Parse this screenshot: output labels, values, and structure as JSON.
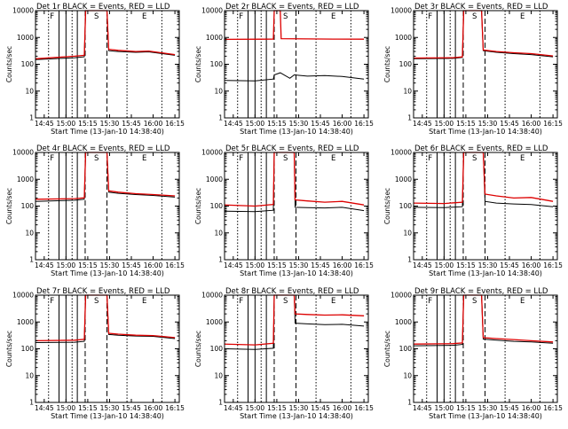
{
  "chart_data": [
    {
      "type": "line",
      "title": "Det 1r  BLACK = Events, RED = LLD",
      "xlabel": "Start Time (13-Jan-10 14:38:40)",
      "ylabel": "Counts/sec",
      "xticks": [
        "14:45",
        "15:00",
        "15:15",
        "15:30",
        "15:45",
        "16:00",
        "16:15"
      ],
      "yticks": [
        "1",
        "10",
        "100",
        "1000",
        "10000"
      ],
      "ylim": [
        1,
        10000
      ],
      "xlim": [
        14.65,
        16.3
      ],
      "markers": [
        "F",
        "S",
        "E"
      ],
      "series": [
        {
          "name": "Events",
          "color": "#000000",
          "values": [
            [
              14.65,
              150
            ],
            [
              15.1,
              175
            ],
            [
              15.21,
              190
            ],
            [
              15.225,
              10000
            ],
            [
              15.47,
              10000
            ],
            [
              15.49,
              320
            ],
            [
              15.6,
              300
            ],
            [
              15.8,
              280
            ],
            [
              15.95,
              290
            ],
            [
              16.25,
              215
            ]
          ]
        },
        {
          "name": "LLD",
          "color": "#dd0000",
          "values": [
            [
              14.65,
              160
            ],
            [
              15.1,
              200
            ],
            [
              15.21,
              215
            ],
            [
              15.225,
              10000
            ],
            [
              15.47,
              10000
            ],
            [
              15.49,
              360
            ],
            [
              15.6,
              330
            ],
            [
              15.8,
              300
            ],
            [
              15.95,
              310
            ],
            [
              16.25,
              230
            ]
          ]
        }
      ]
    },
    {
      "type": "line",
      "title": "Det 2r  BLACK = Events, RED = LLD",
      "xlabel": "Start Time (13-Jan-10 14:38:40)",
      "ylabel": "Counts/sec",
      "xticks": [
        "14:45",
        "15:00",
        "15:15",
        "15:30",
        "15:45",
        "16:00",
        "16:15"
      ],
      "yticks": [
        "1",
        "10",
        "100",
        "1000",
        "10000"
      ],
      "ylim": [
        1,
        10000
      ],
      "xlim": [
        14.65,
        16.3
      ],
      "markers": [
        "F",
        "S",
        "E"
      ],
      "series": [
        {
          "name": "Events",
          "color": "#000000",
          "values": [
            [
              14.65,
              25
            ],
            [
              15.0,
              24
            ],
            [
              15.21,
              28
            ],
            [
              15.22,
              40
            ],
            [
              15.29,
              48
            ],
            [
              15.4,
              30
            ],
            [
              15.45,
              40
            ],
            [
              15.6,
              36
            ],
            [
              15.8,
              38
            ],
            [
              16.0,
              35
            ],
            [
              16.25,
              28
            ]
          ]
        },
        {
          "name": "LLD",
          "color": "#dd0000",
          "values": [
            [
              14.65,
              850
            ],
            [
              15.1,
              860
            ],
            [
              15.21,
              870
            ],
            [
              15.22,
              10000
            ],
            [
              15.29,
              10000
            ],
            [
              15.3,
              900
            ],
            [
              15.6,
              880
            ],
            [
              15.9,
              870
            ],
            [
              16.25,
              860
            ]
          ]
        }
      ]
    },
    {
      "type": "line",
      "title": "Det 3r  BLACK = Events, RED = LLD",
      "xlabel": "Start Time (13-Jan-10 14:38:40)",
      "ylabel": "Counts/sec",
      "xticks": [
        "14:45",
        "15:00",
        "15:15",
        "15:30",
        "15:45",
        "16:00",
        "16:15"
      ],
      "yticks": [
        "1",
        "10",
        "100",
        "1000",
        "10000"
      ],
      "ylim": [
        1,
        10000
      ],
      "xlim": [
        14.65,
        16.3
      ],
      "markers": [
        "F",
        "S",
        "E"
      ],
      "series": [
        {
          "name": "Events",
          "color": "#000000",
          "values": [
            [
              14.65,
              160
            ],
            [
              15.1,
              165
            ],
            [
              15.21,
              180
            ],
            [
              15.225,
              10000
            ],
            [
              15.43,
              10000
            ],
            [
              15.45,
              320
            ],
            [
              15.6,
              280
            ],
            [
              15.8,
              250
            ],
            [
              16.0,
              230
            ],
            [
              16.25,
              190
            ]
          ]
        },
        {
          "name": "LLD",
          "color": "#dd0000",
          "values": [
            [
              14.65,
              170
            ],
            [
              15.1,
              175
            ],
            [
              15.21,
              190
            ],
            [
              15.225,
              10000
            ],
            [
              15.43,
              10000
            ],
            [
              15.45,
              340
            ],
            [
              15.6,
              300
            ],
            [
              15.8,
              270
            ],
            [
              16.0,
              250
            ],
            [
              16.25,
              205
            ]
          ]
        }
      ]
    },
    {
      "type": "line",
      "title": "Det 4r  BLACK = Events, RED = LLD",
      "xlabel": "Start Time (13-Jan-10 14:38:40)",
      "ylabel": "Counts/sec",
      "xticks": [
        "14:45",
        "15:00",
        "15:15",
        "15:30",
        "15:45",
        "16:00",
        "16:15"
      ],
      "yticks": [
        "1",
        "10",
        "100",
        "1000",
        "10000"
      ],
      "ylim": [
        1,
        10000
      ],
      "xlim": [
        14.65,
        16.3
      ],
      "markers": [
        "F",
        "S",
        "E"
      ],
      "series": [
        {
          "name": "Events",
          "color": "#000000",
          "values": [
            [
              14.65,
              150
            ],
            [
              15.1,
              165
            ],
            [
              15.21,
              180
            ],
            [
              15.225,
              10000
            ],
            [
              15.47,
              10000
            ],
            [
              15.49,
              330
            ],
            [
              15.6,
              300
            ],
            [
              15.8,
              270
            ],
            [
              16.0,
              250
            ],
            [
              16.25,
              215
            ]
          ]
        },
        {
          "name": "LLD",
          "color": "#dd0000",
          "values": [
            [
              14.65,
              180
            ],
            [
              15.1,
              190
            ],
            [
              15.21,
              205
            ],
            [
              15.225,
              10000
            ],
            [
              15.47,
              10000
            ],
            [
              15.49,
              370
            ],
            [
              15.6,
              330
            ],
            [
              15.8,
              290
            ],
            [
              16.0,
              270
            ],
            [
              16.25,
              240
            ]
          ]
        }
      ]
    },
    {
      "type": "line",
      "title": "Det 5r  BLACK = Events, RED = LLD",
      "xlabel": "Start Time (13-Jan-10 14:38:40)",
      "ylabel": "Counts/sec",
      "xticks": [
        "14:45",
        "15:00",
        "15:15",
        "15:30",
        "15:45",
        "16:00",
        "16:15"
      ],
      "yticks": [
        "1",
        "10",
        "100",
        "1000",
        "10000"
      ],
      "ylim": [
        1,
        10000
      ],
      "xlim": [
        14.65,
        16.3
      ],
      "markers": [
        "F",
        "S",
        "E"
      ],
      "series": [
        {
          "name": "Events",
          "color": "#000000",
          "values": [
            [
              14.65,
              65
            ],
            [
              15.0,
              62
            ],
            [
              15.21,
              70
            ],
            [
              15.22,
              10000
            ],
            [
              15.45,
              10000
            ],
            [
              15.46,
              90
            ],
            [
              15.6,
              88
            ],
            [
              15.8,
              85
            ],
            [
              16.0,
              90
            ],
            [
              16.25,
              68
            ]
          ]
        },
        {
          "name": "LLD",
          "color": "#dd0000",
          "values": [
            [
              14.65,
              110
            ],
            [
              15.0,
              100
            ],
            [
              15.21,
              115
            ],
            [
              15.22,
              10000
            ],
            [
              15.45,
              10000
            ],
            [
              15.46,
              170
            ],
            [
              15.6,
              155
            ],
            [
              15.8,
              140
            ],
            [
              16.0,
              150
            ],
            [
              16.25,
              110
            ]
          ]
        }
      ]
    },
    {
      "type": "line",
      "title": "Det 6r  BLACK = Events, RED = LLD",
      "xlabel": "Start Time (13-Jan-10 14:38:40)",
      "ylabel": "Counts/sec",
      "xticks": [
        "14:45",
        "15:00",
        "15:15",
        "15:30",
        "15:45",
        "16:00",
        "16:15"
      ],
      "yticks": [
        "1",
        "10",
        "100",
        "1000",
        "10000"
      ],
      "ylim": [
        1,
        10000
      ],
      "xlim": [
        14.65,
        16.3
      ],
      "markers": [
        "F",
        "S",
        "E"
      ],
      "series": [
        {
          "name": "Events",
          "color": "#000000",
          "values": [
            [
              14.65,
              90
            ],
            [
              15.0,
              88
            ],
            [
              15.21,
              95
            ],
            [
              15.225,
              10000
            ],
            [
              15.45,
              10000
            ],
            [
              15.47,
              150
            ],
            [
              15.6,
              130
            ],
            [
              15.8,
              120
            ],
            [
              16.0,
              115
            ],
            [
              16.25,
              95
            ]
          ]
        },
        {
          "name": "LLD",
          "color": "#dd0000",
          "values": [
            [
              14.65,
              130
            ],
            [
              15.0,
              125
            ],
            [
              15.21,
              140
            ],
            [
              15.225,
              10000
            ],
            [
              15.45,
              10000
            ],
            [
              15.47,
              280
            ],
            [
              15.6,
              240
            ],
            [
              15.8,
              200
            ],
            [
              16.0,
              210
            ],
            [
              16.25,
              150
            ]
          ]
        }
      ]
    },
    {
      "type": "line",
      "title": "Det 7r  BLACK = Events, RED = LLD",
      "xlabel": "Start Time (13-Jan-10 14:38:40)",
      "ylabel": "Counts/sec",
      "xticks": [
        "14:45",
        "15:00",
        "15:15",
        "15:30",
        "15:45",
        "16:00",
        "16:15"
      ],
      "yticks": [
        "1",
        "10",
        "100",
        "1000",
        "10000"
      ],
      "ylim": [
        1,
        10000
      ],
      "xlim": [
        14.65,
        16.3
      ],
      "markers": [
        "F",
        "S",
        "E"
      ],
      "series": [
        {
          "name": "Events",
          "color": "#000000",
          "values": [
            [
              14.65,
              170
            ],
            [
              15.1,
              175
            ],
            [
              15.21,
              190
            ],
            [
              15.225,
              10000
            ],
            [
              15.47,
              10000
            ],
            [
              15.49,
              340
            ],
            [
              15.6,
              320
            ],
            [
              15.8,
              300
            ],
            [
              16.0,
              290
            ],
            [
              16.25,
              240
            ]
          ]
        },
        {
          "name": "LLD",
          "color": "#dd0000",
          "values": [
            [
              14.65,
              200
            ],
            [
              15.1,
              210
            ],
            [
              15.21,
              225
            ],
            [
              15.225,
              10000
            ],
            [
              15.47,
              10000
            ],
            [
              15.49,
              380
            ],
            [
              15.6,
              350
            ],
            [
              15.8,
              320
            ],
            [
              16.0,
              310
            ],
            [
              16.25,
              260
            ]
          ]
        }
      ]
    },
    {
      "type": "line",
      "title": "Det 8r  BLACK = Events, RED = LLD",
      "xlabel": "Start Time (13-Jan-10 14:38:40)",
      "ylabel": "Counts/sec",
      "xticks": [
        "14:45",
        "15:00",
        "15:15",
        "15:30",
        "15:45",
        "16:00",
        "16:15"
      ],
      "yticks": [
        "1",
        "10",
        "100",
        "1000",
        "10000"
      ],
      "ylim": [
        1,
        10000
      ],
      "xlim": [
        14.65,
        16.3
      ],
      "markers": [
        "F",
        "S",
        "E"
      ],
      "series": [
        {
          "name": "Events",
          "color": "#000000",
          "values": [
            [
              14.65,
              100
            ],
            [
              15.0,
              95
            ],
            [
              15.21,
              105
            ],
            [
              15.22,
              10000
            ],
            [
              15.45,
              10000
            ],
            [
              15.46,
              900
            ],
            [
              15.6,
              850
            ],
            [
              15.8,
              800
            ],
            [
              16.0,
              820
            ],
            [
              16.25,
              700
            ]
          ]
        },
        {
          "name": "LLD",
          "color": "#dd0000",
          "values": [
            [
              14.65,
              150
            ],
            [
              15.0,
              140
            ],
            [
              15.21,
              160
            ],
            [
              15.22,
              10000
            ],
            [
              15.45,
              10000
            ],
            [
              15.46,
              2000
            ],
            [
              15.6,
              1900
            ],
            [
              15.8,
              1800
            ],
            [
              16.0,
              1850
            ],
            [
              16.25,
              1700
            ]
          ]
        }
      ]
    },
    {
      "type": "line",
      "title": "Det 9r  BLACK = Events, RED = LLD",
      "xlabel": "Start Time (13-Jan-10 14:38:40)",
      "ylabel": "Counts/sec",
      "xticks": [
        "14:45",
        "15:00",
        "15:15",
        "15:30",
        "15:45",
        "16:00",
        "16:15"
      ],
      "yticks": [
        "1",
        "10",
        "100",
        "1000",
        "10000"
      ],
      "ylim": [
        1,
        10000
      ],
      "xlim": [
        14.65,
        16.3
      ],
      "markers": [
        "F",
        "S",
        "E"
      ],
      "series": [
        {
          "name": "Events",
          "color": "#000000",
          "values": [
            [
              14.65,
              130
            ],
            [
              15.1,
              135
            ],
            [
              15.21,
              145
            ],
            [
              15.225,
              10000
            ],
            [
              15.43,
              10000
            ],
            [
              15.45,
              230
            ],
            [
              15.6,
              210
            ],
            [
              15.8,
              190
            ],
            [
              16.0,
              180
            ],
            [
              16.25,
              160
            ]
          ]
        },
        {
          "name": "LLD",
          "color": "#dd0000",
          "values": [
            [
              14.65,
              150
            ],
            [
              15.1,
              155
            ],
            [
              15.21,
              165
            ],
            [
              15.225,
              10000
            ],
            [
              15.43,
              10000
            ],
            [
              15.45,
              260
            ],
            [
              15.6,
              240
            ],
            [
              15.8,
              220
            ],
            [
              16.0,
              200
            ],
            [
              16.25,
              180
            ]
          ]
        }
      ]
    }
  ]
}
